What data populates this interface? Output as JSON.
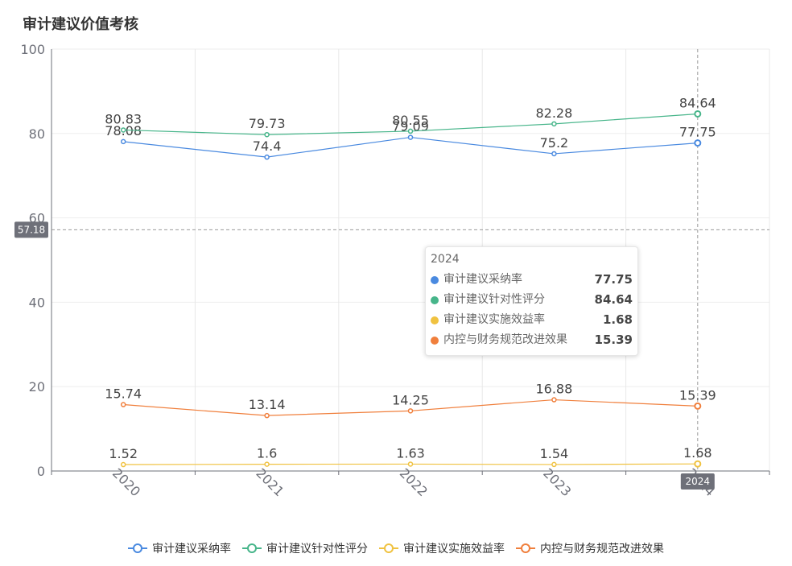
{
  "chart_data": {
    "type": "line",
    "title": "审计建议价值考核",
    "categories": [
      "2020",
      "2021",
      "2022",
      "2023",
      "2024"
    ],
    "ylim": [
      0,
      100
    ],
    "yticks": [
      0,
      20,
      40,
      60,
      80,
      100
    ],
    "series": [
      {
        "name": "审计建议采纳率",
        "color": "#5470c6",
        "values": [
          78.08,
          74.4,
          79.09,
          75.2,
          77.75
        ]
      },
      {
        "name": "审计建议针对性评分",
        "color": "#3ba272",
        "values": [
          80.83,
          79.73,
          80.55,
          82.28,
          84.64
        ]
      },
      {
        "name": "审计建议实施效益率",
        "color": "#f2b632",
        "values": [
          1.52,
          1.6,
          1.63,
          1.54,
          1.68
        ]
      },
      {
        "name": "内控与财务规范改进效果",
        "color": "#ee7b3b",
        "values": [
          15.74,
          13.14,
          14.25,
          16.88,
          15.39
        ]
      }
    ],
    "series_colors_display": [
      "#4a8ae0",
      "#47b58a",
      "#f0c240",
      "#f07f3c"
    ],
    "crosshair": {
      "y_value": 57.18,
      "y_label": "57.18",
      "x_label": "2024"
    },
    "legend_position": "bottom-center",
    "grid": true
  },
  "tooltip": {
    "title": "2024",
    "rows": [
      {
        "name": "审计建议采纳率",
        "value": "77.75"
      },
      {
        "name": "审计建议针对性评分",
        "value": "84.64"
      },
      {
        "name": "审计建议实施效益率",
        "value": "1.68"
      },
      {
        "name": "内控与财务规范改进效果",
        "value": "15.39"
      }
    ]
  }
}
